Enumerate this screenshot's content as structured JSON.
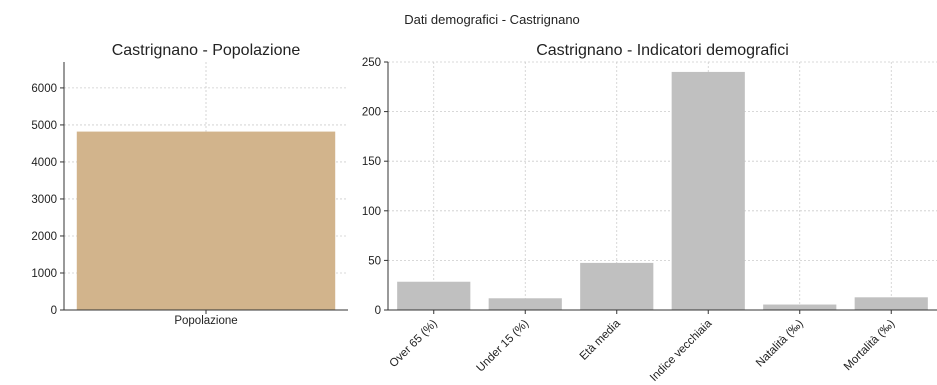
{
  "suptitle": "Dati demografici - Castrignano",
  "chart_data": [
    {
      "type": "bar",
      "title": "Castrignano - Popolazione",
      "categories": [
        "Popolazione"
      ],
      "values": [
        4820
      ],
      "ylim": [
        0,
        6700
      ],
      "yticks": [
        0,
        1000,
        2000,
        3000,
        4000,
        5000,
        6000
      ],
      "grid": true,
      "color": "#d2b48c"
    },
    {
      "type": "bar",
      "title": "Castrignano - Indicatori demografici",
      "categories": [
        "Over 65 (%)",
        "Under 15 (%)",
        "Età media",
        "Indice vecchiaia",
        "Natalità (‰)",
        "Mortalità (‰)"
      ],
      "values": [
        28.5,
        11.8,
        47.5,
        240,
        5.5,
        12.8
      ],
      "ylim": [
        0,
        250
      ],
      "yticks": [
        0,
        50,
        100,
        150,
        200,
        250
      ],
      "grid": true,
      "color": "#c0c0c0"
    }
  ]
}
